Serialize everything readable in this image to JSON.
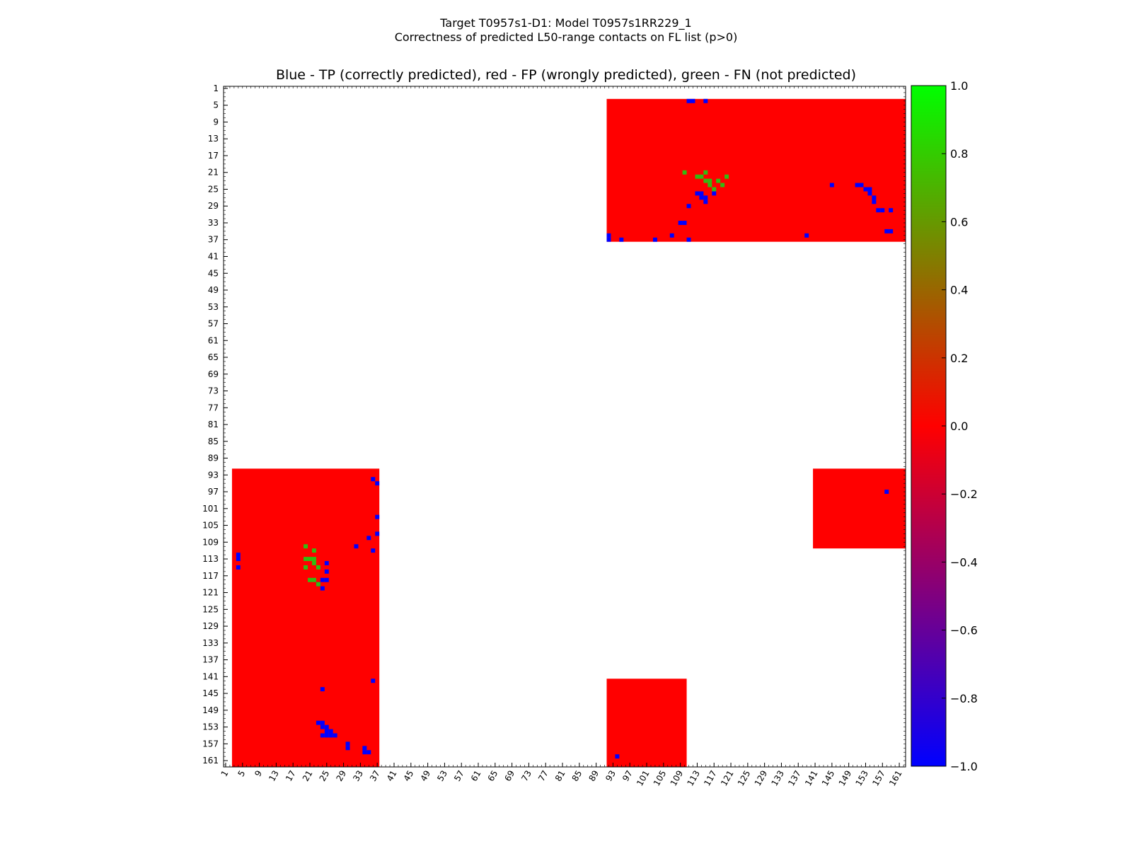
{
  "chart_data": {
    "type": "heatmap",
    "suptitle_lines": [
      "Target T0957s1-D1: Model T0957s1RR229_1",
      "Correctness of predicted L50-range contacts on FL list (p>0)"
    ],
    "title": "Blue - TP (correctly predicted), red - FP (wrongly predicted), green - FN (not predicted)",
    "xlabel": "",
    "ylabel": "",
    "n_residues": 162,
    "xlim": [
      1,
      162
    ],
    "ylim": [
      1,
      162
    ],
    "grid": false,
    "tick_labels": [
      "1",
      "5",
      "9",
      "13",
      "17",
      "21",
      "25",
      "29",
      "33",
      "37",
      "41",
      "45",
      "49",
      "53",
      "57",
      "61",
      "65",
      "69",
      "73",
      "77",
      "81",
      "85",
      "89",
      "93",
      "97",
      "101",
      "105",
      "109",
      "113",
      "117",
      "121",
      "125",
      "129",
      "133",
      "137",
      "141",
      "145",
      "149",
      "153",
      "157",
      "161"
    ],
    "colorbar": {
      "range": [
        -1.0,
        1.0
      ],
      "tick_labels": [
        "1.0",
        "0.8",
        "0.6",
        "0.4",
        "0.2",
        "0.0",
        "−0.2",
        "−0.4",
        "−0.6",
        "−0.8",
        "−1.0"
      ],
      "colors": {
        "low": "#0000ff",
        "mid": "#ff0000",
        "high": "#00ff00"
      }
    },
    "value_meaning": {
      "TP": -1,
      "FP": 0,
      "FN": 1
    },
    "cell_colors": {
      "TP": "#0000ff",
      "FP": "#ff0000",
      "FN": "#33bb11"
    },
    "fp_regions": [
      {
        "rows": [
          4,
          37
        ],
        "cols": [
          92,
          162
        ]
      },
      {
        "rows": [
          92,
          162
        ],
        "cols": [
          3,
          37
        ]
      },
      {
        "rows": [
          92,
          110
        ],
        "cols": [
          141,
          162
        ]
      },
      {
        "rows": [
          142,
          162
        ],
        "cols": [
          92,
          110
        ]
      }
    ],
    "tp_contacts": [
      [
        4,
        111
      ],
      [
        4,
        112
      ],
      [
        4,
        115
      ],
      [
        24,
        145
      ],
      [
        24,
        151
      ],
      [
        24,
        152
      ],
      [
        25,
        153
      ],
      [
        25,
        154
      ],
      [
        26,
        154
      ],
      [
        27,
        155
      ],
      [
        28,
        155
      ],
      [
        26,
        113
      ],
      [
        26,
        114
      ],
      [
        26,
        117
      ],
      [
        27,
        114
      ],
      [
        27,
        115
      ],
      [
        28,
        115
      ],
      [
        29,
        111
      ],
      [
        30,
        156
      ],
      [
        30,
        157
      ],
      [
        30,
        159
      ],
      [
        33,
        109
      ],
      [
        33,
        110
      ],
      [
        35,
        158
      ],
      [
        35,
        159
      ],
      [
        36,
        92
      ],
      [
        37,
        92
      ],
      [
        37,
        95
      ],
      [
        36,
        107
      ],
      [
        37,
        111
      ],
      [
        37,
        103
      ],
      [
        36,
        139
      ],
      [
        94,
        36
      ],
      [
        95,
        37
      ],
      [
        103,
        37
      ],
      [
        107,
        37
      ],
      [
        108,
        35
      ],
      [
        110,
        32
      ],
      [
        111,
        36
      ],
      [
        112,
        4
      ],
      [
        113,
        4
      ],
      [
        114,
        25
      ],
      [
        115,
        4
      ],
      [
        116,
        25
      ],
      [
        118,
        24
      ],
      [
        118,
        25
      ],
      [
        119,
        23
      ],
      [
        120,
        24
      ],
      [
        142,
        36
      ],
      [
        144,
        24
      ],
      [
        152,
        23
      ],
      [
        152,
        24
      ],
      [
        153,
        24
      ],
      [
        153,
        25
      ],
      [
        154,
        25
      ],
      [
        154,
        26
      ],
      [
        155,
        24
      ],
      [
        155,
        25
      ],
      [
        155,
        26
      ],
      [
        155,
        27
      ],
      [
        157,
        30
      ],
      [
        158,
        30
      ],
      [
        158,
        34
      ],
      [
        159,
        34
      ],
      [
        159,
        35
      ],
      [
        160,
        94
      ],
      [
        97,
        158
      ]
    ],
    "fn_contacts": [
      [
        21,
        110
      ],
      [
        22,
        114
      ],
      [
        21,
        115
      ],
      [
        22,
        113
      ],
      [
        23,
        115
      ],
      [
        23,
        116
      ],
      [
        24,
        116
      ],
      [
        23,
        118
      ],
      [
        25,
        117
      ],
      [
        24,
        119
      ],
      [
        22,
        120
      ],
      [
        110,
        20
      ],
      [
        111,
        22
      ],
      [
        113,
        20
      ],
      [
        113,
        21
      ],
      [
        113,
        22
      ],
      [
        114,
        22
      ],
      [
        115,
        20
      ],
      [
        115,
        23
      ],
      [
        118,
        21
      ],
      [
        118,
        22
      ],
      [
        119,
        23
      ]
    ]
  }
}
